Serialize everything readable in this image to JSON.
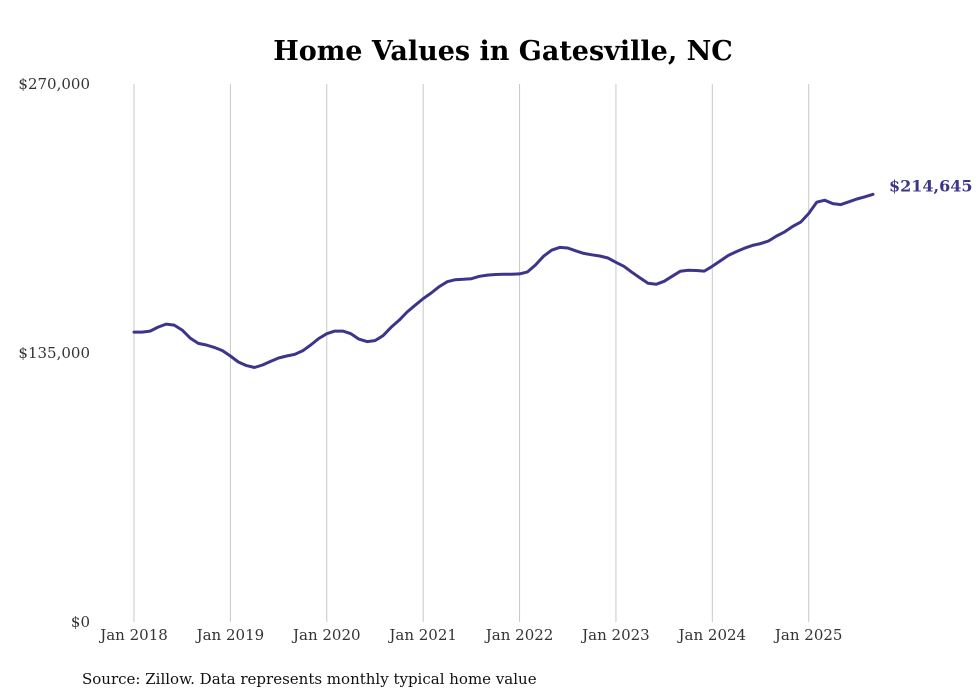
{
  "chart_data": {
    "type": "line",
    "title": "Home Values in Gatesville, NC",
    "xlabel": "",
    "ylabel": "",
    "ylim": [
      0,
      270000
    ],
    "y_ticks": [
      {
        "value": 0,
        "label": "$0"
      },
      {
        "value": 135000,
        "label": "$135,000"
      },
      {
        "value": 270000,
        "label": "$270,000"
      }
    ],
    "x_ticks": [
      {
        "value": 2018.0,
        "label": "Jan 2018"
      },
      {
        "value": 2019.0,
        "label": "Jan 2019"
      },
      {
        "value": 2020.0,
        "label": "Jan 2020"
      },
      {
        "value": 2021.0,
        "label": "Jan 2021"
      },
      {
        "value": 2022.0,
        "label": "Jan 2022"
      },
      {
        "value": 2023.0,
        "label": "Jan 2023"
      },
      {
        "value": 2024.0,
        "label": "Jan 2024"
      },
      {
        "value": 2025.0,
        "label": "Jan 2025"
      }
    ],
    "xlim": [
      2018.0,
      2025.667
    ],
    "grid": "vertical",
    "end_label": "$214,645",
    "series": [
      {
        "name": "Typical home value",
        "color": "#3d3589",
        "x": [
          2018.0,
          2018.083,
          2018.167,
          2018.25,
          2018.333,
          2018.417,
          2018.5,
          2018.583,
          2018.667,
          2018.75,
          2018.833,
          2018.917,
          2019.0,
          2019.083,
          2019.167,
          2019.25,
          2019.333,
          2019.417,
          2019.5,
          2019.583,
          2019.667,
          2019.75,
          2019.833,
          2019.917,
          2020.0,
          2020.083,
          2020.167,
          2020.25,
          2020.333,
          2020.417,
          2020.5,
          2020.583,
          2020.667,
          2020.75,
          2020.833,
          2020.917,
          2021.0,
          2021.083,
          2021.167,
          2021.25,
          2021.333,
          2021.417,
          2021.5,
          2021.583,
          2021.667,
          2021.75,
          2021.833,
          2021.917,
          2022.0,
          2022.083,
          2022.167,
          2022.25,
          2022.333,
          2022.417,
          2022.5,
          2022.583,
          2022.667,
          2022.75,
          2022.833,
          2022.917,
          2023.0,
          2023.083,
          2023.167,
          2023.25,
          2023.333,
          2023.417,
          2023.5,
          2023.583,
          2023.667,
          2023.75,
          2023.833,
          2023.917,
          2024.0,
          2024.083,
          2024.167,
          2024.25,
          2024.333,
          2024.417,
          2024.5,
          2024.583,
          2024.667,
          2024.75,
          2024.833,
          2024.917,
          2025.0,
          2025.083,
          2025.167,
          2025.25,
          2025.333,
          2025.417,
          2025.5,
          2025.583,
          2025.667
        ],
        "values": [
          145500,
          145500,
          146000,
          148000,
          149500,
          149000,
          146500,
          142500,
          139800,
          139000,
          137800,
          136200,
          133500,
          130500,
          128700,
          127700,
          129000,
          130800,
          132500,
          133500,
          134300,
          136100,
          139000,
          142300,
          144700,
          146000,
          146000,
          144700,
          142000,
          140700,
          141200,
          143700,
          147900,
          151400,
          155600,
          159000,
          162300,
          165100,
          168300,
          170800,
          171800,
          172000,
          172300,
          173500,
          174100,
          174400,
          174500,
          174500,
          174700,
          175700,
          179200,
          183600,
          186600,
          188000,
          187700,
          186300,
          185000,
          184300,
          183700,
          182700,
          180500,
          178500,
          175500,
          172700,
          170000,
          169500,
          171000,
          173500,
          176000,
          176500,
          176400,
          176100,
          178500,
          181200,
          184000,
          185900,
          187600,
          189000,
          189900,
          191200,
          193700,
          195800,
          198500,
          200700,
          205000,
          210700,
          211700,
          210000,
          209500,
          210900,
          212300,
          213400,
          214645
        ]
      }
    ]
  },
  "footer": {
    "source": "Source: Zillow. Data represents monthly typical home value"
  }
}
